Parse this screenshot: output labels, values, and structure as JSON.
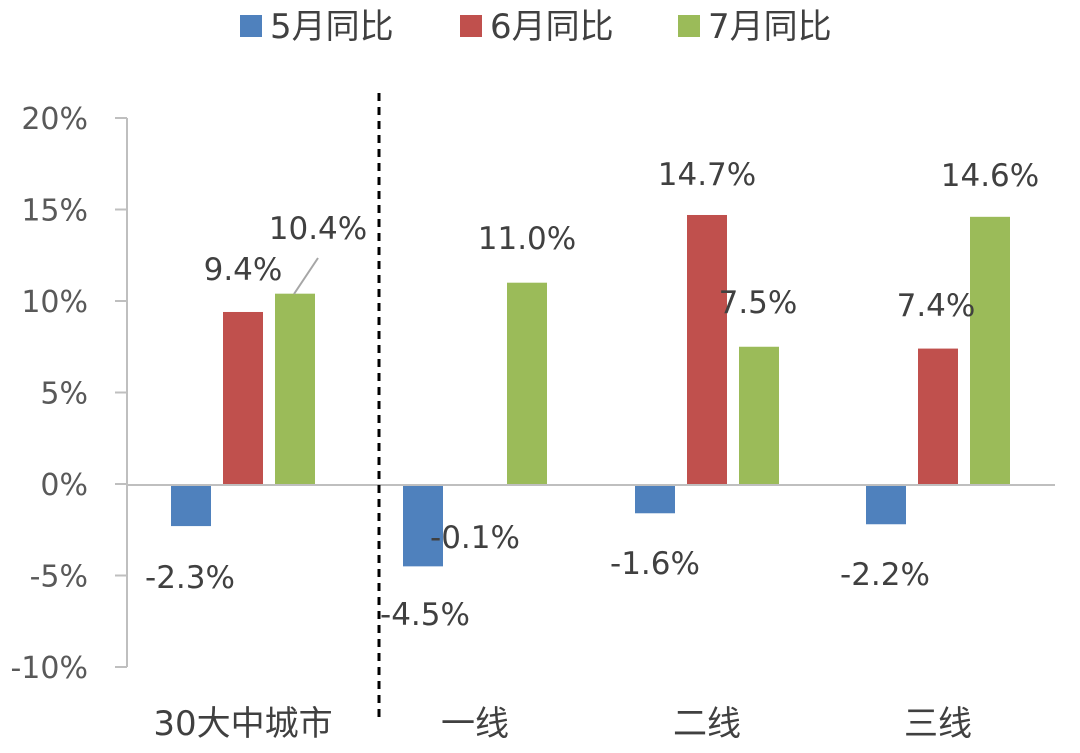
{
  "chart_data": {
    "type": "bar",
    "title": "",
    "xlabel": "",
    "ylabel": "",
    "categories": [
      "30大中城市",
      "一线",
      "二线",
      "三线"
    ],
    "series": [
      {
        "name": "5月同比",
        "color": "#4F81BD",
        "values": [
          -2.3,
          -4.5,
          -1.6,
          -2.2
        ]
      },
      {
        "name": "6月同比",
        "color": "#C0504D",
        "values": [
          9.4,
          -0.1,
          14.7,
          7.4
        ]
      },
      {
        "name": "7月同比",
        "color": "#9BBB59",
        "values": [
          10.4,
          11.0,
          7.5,
          14.6
        ]
      }
    ],
    "data_labels": [
      [
        "-2.3%",
        "-4.5%",
        "-1.6%",
        "-2.2%"
      ],
      [
        "9.4%",
        "-0.1%",
        "14.7%",
        "7.4%"
      ],
      [
        "10.4%",
        "11.0%",
        "7.5%",
        "14.6%"
      ]
    ],
    "ylim": [
      -10,
      20
    ],
    "yticks": [
      -10,
      -5,
      0,
      5,
      10,
      15,
      20
    ],
    "ytick_labels": [
      "-10%",
      "-5%",
      "0%",
      "5%",
      "10%",
      "15%",
      "20%"
    ],
    "grid": false,
    "legend_position": "top-center",
    "divider": "dashed vertical line between 30大中城市 and 一线"
  }
}
